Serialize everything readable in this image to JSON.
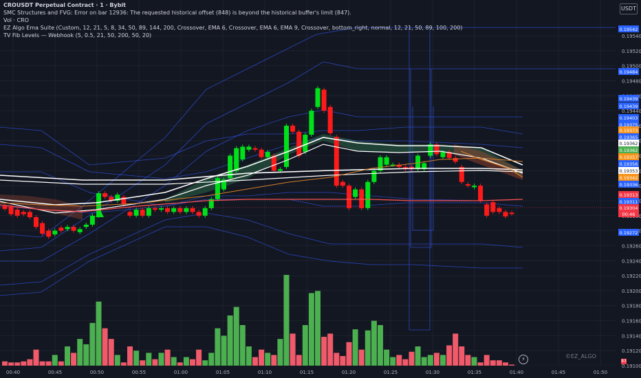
{
  "legend": {
    "title": "CROUSDT Perpetual Contract · 1 · Bybit",
    "line2": "SMC Structures and FVG: Error on bar 12936: The requested historical offset (848) is beyond the historical buffer's limit (847).",
    "line3": "Vol · CRO",
    "line4": "EZ Algo Ema Suite (Custom, 12, 21, 5, 8, 34, 50, 89, 144, 200, Crossover, EMA 6, Crossover, EMA 6, EMA 9, Crossover, bottom_right, normal, 12, 21, 50, 89, 100, 200)",
    "line5": "TV Fib Levels — Webhook (5, 0.5, 21, 50, 200, 50, 20)"
  },
  "currency": "USDT",
  "watermark": "©EZ_ALGO",
  "countdown": "00:46",
  "corner_badge": "83",
  "colors": {
    "background": "#131722",
    "grid": "#1e222d",
    "up": "#00e11a",
    "down": "#ff1a1a",
    "vol_up": "#4caf50",
    "vol_down": "#f05a6a",
    "fib": "#2e4fd6",
    "ema_white": "#ffffff",
    "ema_orange": "#d6802a",
    "ema_red": "#ff5252"
  },
  "chart_data": {
    "type": "candlestick",
    "y_axis_ticks": [
      "0.19540",
      "0.19520",
      "0.19500",
      "0.19480",
      "0.19460",
      "0.19440",
      "0.19420",
      "0.19400",
      "0.19380",
      "0.19360",
      "0.19340",
      "0.19320",
      "0.19300",
      "0.19280",
      "0.19260",
      "0.19240",
      "0.19220",
      "0.19200",
      "0.19180",
      "0.19160",
      "0.19140",
      "0.19120",
      "0.19100"
    ],
    "x_axis_ticks": [
      "00:40",
      "00:45",
      "00:50",
      "00:55",
      "01:00",
      "01:05",
      "01:10",
      "01:15",
      "01:20",
      "01:25",
      "01:30",
      "01:35",
      "01:40",
      "01:45",
      "01:50"
    ],
    "price_labels": [
      {
        "value": "0.19542",
        "color": "#2962ff"
      },
      {
        "value": "0.19484",
        "color": "#2962ff"
      },
      {
        "value": "0.19439",
        "color": "#2962ff"
      },
      {
        "value": "0.19439",
        "color": "#2962ff"
      },
      {
        "value": "0.19403",
        "color": "#2962ff"
      },
      {
        "value": "0.19375",
        "color": "#2962ff"
      },
      {
        "value": "0.19373",
        "color": "#f7931a"
      },
      {
        "value": "0.19365",
        "color": "#2962ff"
      },
      {
        "value": "0.19362",
        "color": "#ffffff"
      },
      {
        "value": "0.19362",
        "color": "#4caf50"
      },
      {
        "value": "0.19357",
        "color": "#f7931a"
      },
      {
        "value": "0.19356",
        "color": "#2962ff"
      },
      {
        "value": "0.19353",
        "color": "#ffffff"
      },
      {
        "value": "0.19342",
        "color": "#f7931a"
      },
      {
        "value": "0.19336",
        "color": "#2962ff"
      },
      {
        "value": "0.19313",
        "color": "#f23645"
      },
      {
        "value": "0.19311",
        "color": "#2962ff"
      },
      {
        "value": "0.19304",
        "color": "#f23645"
      },
      {
        "value": "0.19272",
        "color": "#2962ff"
      }
    ],
    "candles": [
      {
        "o": 0.19313,
        "c": 0.19309,
        "v": 4
      },
      {
        "o": 0.19312,
        "c": 0.19302,
        "v": 3
      },
      {
        "o": 0.19308,
        "c": 0.193,
        "v": 3
      },
      {
        "o": 0.19305,
        "c": 0.19302,
        "v": 4
      },
      {
        "o": 0.19305,
        "c": 0.19298,
        "v": 6
      },
      {
        "o": 0.19298,
        "c": 0.19285,
        "v": 15
      },
      {
        "o": 0.1929,
        "c": 0.19276,
        "v": 4
      },
      {
        "o": 0.1928,
        "c": 0.19272,
        "v": 4
      },
      {
        "o": 0.19275,
        "c": 0.1928,
        "v": 10
      },
      {
        "o": 0.19284,
        "c": 0.1928,
        "v": 4
      },
      {
        "o": 0.19282,
        "c": 0.19285,
        "v": 18
      },
      {
        "o": 0.19285,
        "c": 0.1928,
        "v": 12
      },
      {
        "o": 0.19278,
        "c": 0.19282,
        "v": 25
      },
      {
        "o": 0.19285,
        "c": 0.19288,
        "v": 20
      },
      {
        "o": 0.19288,
        "c": 0.193,
        "v": 40
      },
      {
        "o": 0.193,
        "c": 0.1933,
        "v": 60
      },
      {
        "o": 0.1933,
        "c": 0.19325,
        "v": 35
      },
      {
        "o": 0.19325,
        "c": 0.1932,
        "v": 25
      },
      {
        "o": 0.1932,
        "c": 0.19328,
        "v": 10
      },
      {
        "o": 0.19325,
        "c": 0.19315,
        "v": 3
      },
      {
        "o": 0.19305,
        "c": 0.193,
        "v": 18
      },
      {
        "o": 0.193,
        "c": 0.19308,
        "v": 14
      },
      {
        "o": 0.19308,
        "c": 0.193,
        "v": 5
      },
      {
        "o": 0.193,
        "c": 0.1931,
        "v": 12
      },
      {
        "o": 0.1931,
        "c": 0.19308,
        "v": 6
      },
      {
        "o": 0.19308,
        "c": 0.1931,
        "v": 12
      },
      {
        "o": 0.1931,
        "c": 0.19305,
        "v": 15
      },
      {
        "o": 0.19305,
        "c": 0.1931,
        "v": 8
      },
      {
        "o": 0.1931,
        "c": 0.19305,
        "v": 3
      },
      {
        "o": 0.19305,
        "c": 0.1931,
        "v": 8
      },
      {
        "o": 0.1931,
        "c": 0.19305,
        "v": 6
      },
      {
        "o": 0.19305,
        "c": 0.193,
        "v": 15
      },
      {
        "o": 0.193,
        "c": 0.1931,
        "v": 5
      },
      {
        "o": 0.1931,
        "c": 0.19322,
        "v": 12
      },
      {
        "o": 0.19322,
        "c": 0.1935,
        "v": 35
      },
      {
        "o": 0.19335,
        "c": 0.19348,
        "v": 28
      },
      {
        "o": 0.1935,
        "c": 0.1938,
        "v": 47
      },
      {
        "o": 0.1936,
        "c": 0.1939,
        "v": 55
      },
      {
        "o": 0.19375,
        "c": 0.19392,
        "v": 38
      },
      {
        "o": 0.19388,
        "c": 0.19392,
        "v": 18
      },
      {
        "o": 0.1939,
        "c": 0.19388,
        "v": 8
      },
      {
        "o": 0.19388,
        "c": 0.19378,
        "v": 15
      },
      {
        "o": 0.19378,
        "c": 0.19385,
        "v": 12
      },
      {
        "o": 0.1938,
        "c": 0.1936,
        "v": 10
      },
      {
        "o": 0.1936,
        "c": 0.19362,
        "v": 25
      },
      {
        "o": 0.19365,
        "c": 0.1942,
        "v": 85
      },
      {
        "o": 0.1942,
        "c": 0.19412,
        "v": 30
      },
      {
        "o": 0.19412,
        "c": 0.1938,
        "v": 10
      },
      {
        "o": 0.19385,
        "c": 0.19408,
        "v": 38
      },
      {
        "o": 0.19408,
        "c": 0.1944,
        "v": 68
      },
      {
        "o": 0.19445,
        "c": 0.1947,
        "v": 70
      },
      {
        "o": 0.19468,
        "c": 0.1944,
        "v": 27
      },
      {
        "o": 0.19445,
        "c": 0.1941,
        "v": 30
      },
      {
        "o": 0.19405,
        "c": 0.1934,
        "v": 12
      },
      {
        "o": 0.19345,
        "c": 0.1934,
        "v": 9
      },
      {
        "o": 0.1934,
        "c": 0.1931,
        "v": 22
      },
      {
        "o": 0.19325,
        "c": 0.19335,
        "v": 34
      },
      {
        "o": 0.19335,
        "c": 0.1931,
        "v": 15
      },
      {
        "o": 0.1931,
        "c": 0.19345,
        "v": 33
      },
      {
        "o": 0.19345,
        "c": 0.1936,
        "v": 42
      },
      {
        "o": 0.1936,
        "c": 0.19378,
        "v": 38
      },
      {
        "o": 0.19368,
        "c": 0.19378,
        "v": 15
      },
      {
        "o": 0.19368,
        "c": 0.19368,
        "v": 8
      },
      {
        "o": 0.19368,
        "c": 0.19365,
        "v": 10
      },
      {
        "o": 0.19365,
        "c": 0.19362,
        "v": 6
      },
      {
        "o": 0.19365,
        "c": 0.19362,
        "v": 13
      },
      {
        "o": 0.19362,
        "c": 0.1938,
        "v": 18
      },
      {
        "o": 0.19362,
        "c": 0.1937,
        "v": 8
      },
      {
        "o": 0.1938,
        "c": 0.19395,
        "v": 10
      },
      {
        "o": 0.19395,
        "c": 0.19382,
        "v": 12
      },
      {
        "o": 0.19378,
        "c": 0.19385,
        "v": 10
      },
      {
        "o": 0.19385,
        "c": 0.19377,
        "v": 19
      },
      {
        "o": 0.19377,
        "c": 0.19372,
        "v": 30
      },
      {
        "o": 0.19365,
        "c": 0.19345,
        "v": 18
      },
      {
        "o": 0.19342,
        "c": 0.1934,
        "v": 10
      },
      {
        "o": 0.19338,
        "c": 0.1934,
        "v": 8
      },
      {
        "o": 0.1934,
        "c": 0.1932,
        "v": 3
      },
      {
        "o": 0.19315,
        "c": 0.193,
        "v": 10
      },
      {
        "o": 0.19318,
        "c": 0.19305,
        "v": 5
      },
      {
        "o": 0.1931,
        "c": 0.19305,
        "v": 5
      },
      {
        "o": 0.19305,
        "c": 0.19299,
        "v": 3
      },
      {
        "o": 0.19304,
        "c": 0.19303,
        "v": 1
      }
    ]
  }
}
